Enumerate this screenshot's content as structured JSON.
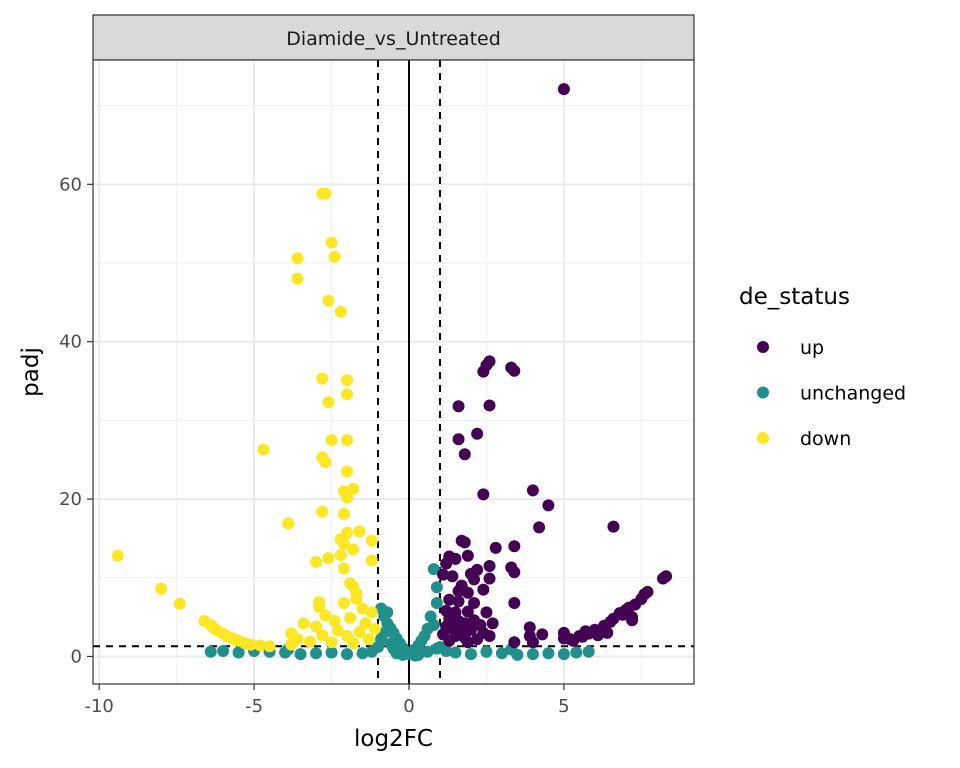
{
  "chart_data": {
    "type": "scatter",
    "title": "",
    "facet": "Diamide_vs_Untreated",
    "xlabel": "log2FC",
    "ylabel": "padj",
    "xlim": [
      -10.2,
      9.2
    ],
    "ylim": [
      -3.5,
      75.8
    ],
    "xticks": [
      -10,
      -5,
      0,
      5
    ],
    "xtick_labels": [
      "-10",
      "-5",
      "0",
      "5"
    ],
    "yticks": [
      0,
      20,
      40,
      60
    ],
    "ytick_labels": [
      "0",
      "20",
      "40",
      "60"
    ],
    "grid": true,
    "reference_lines": {
      "vertical_solid": 0,
      "vertical_dashed": [
        -1,
        1
      ],
      "horizontal_dashed": 1.3
    },
    "legend": {
      "title": "de_status",
      "position": "right"
    },
    "series": [
      {
        "name": "up",
        "color": "#440154",
        "points": [
          [
            5.0,
            72.1
          ],
          [
            2.6,
            37.5
          ],
          [
            2.5,
            37.0
          ],
          [
            3.3,
            36.7
          ],
          [
            3.4,
            36.3
          ],
          [
            2.4,
            36.2
          ],
          [
            1.6,
            31.8
          ],
          [
            2.6,
            31.9
          ],
          [
            2.2,
            28.3
          ],
          [
            1.6,
            27.6
          ],
          [
            1.8,
            25.7
          ],
          [
            4.0,
            21.1
          ],
          [
            2.4,
            20.6
          ],
          [
            4.5,
            19.2
          ],
          [
            6.6,
            16.5
          ],
          [
            4.2,
            16.4
          ],
          [
            1.7,
            14.7
          ],
          [
            1.8,
            14.5
          ],
          [
            2.8,
            13.8
          ],
          [
            3.4,
            14.0
          ],
          [
            1.3,
            12.7
          ],
          [
            1.5,
            12.4
          ],
          [
            1.2,
            11.8
          ],
          [
            1.9,
            12.8
          ],
          [
            2.2,
            11.0
          ],
          [
            2.6,
            11.5
          ],
          [
            3.3,
            11.3
          ],
          [
            3.4,
            10.7
          ],
          [
            1.1,
            10.4
          ],
          [
            1.4,
            10.2
          ],
          [
            2.0,
            10.5
          ],
          [
            2.1,
            9.8
          ],
          [
            2.6,
            9.9
          ],
          [
            1.7,
            9.0
          ],
          [
            1.6,
            8.3
          ],
          [
            1.9,
            8.1
          ],
          [
            2.4,
            8.5
          ],
          [
            1.3,
            7.2
          ],
          [
            1.6,
            7.0
          ],
          [
            2.1,
            6.8
          ],
          [
            3.4,
            6.8
          ],
          [
            1.2,
            5.8
          ],
          [
            1.5,
            5.6
          ],
          [
            1.9,
            5.7
          ],
          [
            2.5,
            5.6
          ],
          [
            1.3,
            4.8
          ],
          [
            1.6,
            4.5
          ],
          [
            1.8,
            4.2
          ],
          [
            2.1,
            4.6
          ],
          [
            2.3,
            4.0
          ],
          [
            2.7,
            4.2
          ],
          [
            1.2,
            3.8
          ],
          [
            1.4,
            3.5
          ],
          [
            1.7,
            3.2
          ],
          [
            2.0,
            3.4
          ],
          [
            2.4,
            3.0
          ],
          [
            1.1,
            2.8
          ],
          [
            1.5,
            2.6
          ],
          [
            1.8,
            2.4
          ],
          [
            2.2,
            2.2
          ],
          [
            2.6,
            2.6
          ],
          [
            1.3,
            2.0
          ],
          [
            1.9,
            1.8
          ],
          [
            3.9,
            3.7
          ],
          [
            4.3,
            2.8
          ],
          [
            3.9,
            2.6
          ],
          [
            3.4,
            1.8
          ],
          [
            4.0,
            1.8
          ],
          [
            5.0,
            3.0
          ],
          [
            5.0,
            2.3
          ],
          [
            5.3,
            2.0
          ],
          [
            5.6,
            2.5
          ],
          [
            5.8,
            2.9
          ],
          [
            6.0,
            3.4
          ],
          [
            6.1,
            2.7
          ],
          [
            6.3,
            3.9
          ],
          [
            6.4,
            3.0
          ],
          [
            6.5,
            4.4
          ],
          [
            6.6,
            4.8
          ],
          [
            6.8,
            5.5
          ],
          [
            7.0,
            5.9
          ],
          [
            7.1,
            6.2
          ],
          [
            7.2,
            5.0
          ],
          [
            7.3,
            6.6
          ],
          [
            7.5,
            7.3
          ],
          [
            7.6,
            7.9
          ],
          [
            7.7,
            8.2
          ],
          [
            8.2,
            9.9
          ],
          [
            8.3,
            10.2
          ],
          [
            6.9,
            5.3
          ],
          [
            7.2,
            4.6
          ],
          [
            5.7,
            3.2
          ],
          [
            5.5,
            2.6
          ],
          [
            5.2,
            2.2
          ]
        ]
      },
      {
        "name": "unchanged",
        "color": "#21908c",
        "points": [
          [
            0.8,
            11.1
          ],
          [
            0.9,
            8.8
          ],
          [
            0.9,
            6.8
          ],
          [
            0.7,
            5.1
          ],
          [
            0.8,
            4.0
          ],
          [
            0.6,
            3.5
          ],
          [
            0.5,
            2.6
          ],
          [
            0.4,
            2.0
          ],
          [
            0.3,
            1.4
          ],
          [
            0.2,
            0.9
          ],
          [
            0.1,
            0.5
          ],
          [
            0.0,
            0.3
          ],
          [
            -0.1,
            0.6
          ],
          [
            -0.2,
            1.1
          ],
          [
            -0.3,
            1.7
          ],
          [
            -0.4,
            2.3
          ],
          [
            -0.5,
            3.0
          ],
          [
            -0.6,
            3.6
          ],
          [
            -0.7,
            4.2
          ],
          [
            -0.8,
            5.1
          ],
          [
            -0.9,
            6.1
          ],
          [
            -0.7,
            5.6
          ],
          [
            -0.8,
            3.0
          ],
          [
            -0.9,
            2.2
          ],
          [
            -0.6,
            1.6
          ],
          [
            -0.5,
            1.0
          ],
          [
            -0.4,
            0.4
          ],
          [
            0.3,
            0.2
          ],
          [
            0.6,
            0.6
          ],
          [
            0.9,
            1.0
          ],
          [
            1.2,
            0.7
          ],
          [
            1.5,
            0.5
          ],
          [
            2.0,
            0.3
          ],
          [
            2.5,
            0.6
          ],
          [
            3.0,
            0.4
          ],
          [
            3.5,
            0.2
          ],
          [
            4.0,
            0.3
          ],
          [
            4.5,
            0.4
          ],
          [
            5.0,
            0.3
          ],
          [
            5.4,
            0.5
          ],
          [
            5.8,
            0.6
          ],
          [
            3.3,
            0.9
          ],
          [
            -1.2,
            0.6
          ],
          [
            -1.5,
            0.4
          ],
          [
            -2.0,
            0.3
          ],
          [
            -2.5,
            0.5
          ],
          [
            -3.0,
            0.4
          ],
          [
            -3.5,
            0.3
          ],
          [
            -4.0,
            0.5
          ],
          [
            -4.5,
            0.6
          ],
          [
            -5.0,
            0.7
          ],
          [
            -5.5,
            0.5
          ],
          [
            -6.0,
            0.7
          ],
          [
            -6.4,
            0.6
          ],
          [
            -3.9,
            0.9
          ],
          [
            -1.0,
            1.2
          ],
          [
            1.0,
            1.2
          ],
          [
            0.2,
            0.1
          ],
          [
            -0.2,
            0.2
          ]
        ]
      },
      {
        "name": "down",
        "color": "#fde725",
        "points": [
          [
            -2.8,
            58.8
          ],
          [
            -2.7,
            58.8
          ],
          [
            -2.5,
            52.6
          ],
          [
            -2.4,
            50.8
          ],
          [
            -3.6,
            50.6
          ],
          [
            -3.6,
            48.0
          ],
          [
            -2.6,
            45.2
          ],
          [
            -2.2,
            43.8
          ],
          [
            -2.0,
            35.1
          ],
          [
            -2.8,
            35.3
          ],
          [
            -2.0,
            33.3
          ],
          [
            -2.6,
            32.3
          ],
          [
            -2.0,
            27.5
          ],
          [
            -2.5,
            27.5
          ],
          [
            -4.7,
            26.3
          ],
          [
            -2.8,
            25.3
          ],
          [
            -2.7,
            24.7
          ],
          [
            -2.0,
            23.5
          ],
          [
            -1.8,
            21.3
          ],
          [
            -2.1,
            21.0
          ],
          [
            -2.0,
            20.2
          ],
          [
            -3.9,
            16.9
          ],
          [
            -2.8,
            18.4
          ],
          [
            -2.1,
            18.1
          ],
          [
            -1.6,
            15.9
          ],
          [
            -2.0,
            15.7
          ],
          [
            -2.2,
            14.9
          ],
          [
            -2.1,
            14.3
          ],
          [
            -1.2,
            14.7
          ],
          [
            -1.8,
            13.6
          ],
          [
            -2.2,
            12.9
          ],
          [
            -1.2,
            12.2
          ],
          [
            -3.0,
            12.0
          ],
          [
            -2.6,
            12.5
          ],
          [
            -2.1,
            11.2
          ],
          [
            -1.9,
            9.3
          ],
          [
            -1.8,
            8.9
          ],
          [
            -1.7,
            8.0
          ],
          [
            -1.7,
            7.3
          ],
          [
            -2.1,
            6.8
          ],
          [
            -2.9,
            6.9
          ],
          [
            -2.9,
            6.3
          ],
          [
            -1.5,
            6.1
          ],
          [
            -1.2,
            5.6
          ],
          [
            -2.7,
            5.2
          ],
          [
            -2.4,
            4.5
          ],
          [
            -1.9,
            4.9
          ],
          [
            -1.4,
            4.2
          ],
          [
            -3.4,
            4.2
          ],
          [
            -3.0,
            3.8
          ],
          [
            -2.3,
            3.3
          ],
          [
            -1.6,
            3.1
          ],
          [
            -1.1,
            3.5
          ],
          [
            -3.8,
            2.9
          ],
          [
            -2.8,
            2.7
          ],
          [
            -2.0,
            2.6
          ],
          [
            -1.3,
            2.2
          ],
          [
            -3.6,
            2.2
          ],
          [
            -3.2,
            1.9
          ],
          [
            -2.5,
            1.8
          ],
          [
            -1.8,
            1.7
          ],
          [
            -3.8,
            1.5
          ],
          [
            -9.4,
            12.8
          ],
          [
            -8.0,
            8.6
          ],
          [
            -7.4,
            6.7
          ],
          [
            -6.6,
            4.5
          ],
          [
            -6.4,
            4.0
          ],
          [
            -6.3,
            3.6
          ],
          [
            -6.0,
            2.9
          ],
          [
            -5.9,
            2.6
          ],
          [
            -5.7,
            2.3
          ],
          [
            -5.5,
            2.0
          ],
          [
            -5.3,
            1.7
          ],
          [
            -5.1,
            1.5
          ],
          [
            -4.8,
            1.4
          ],
          [
            -4.5,
            1.3
          ],
          [
            -6.2,
            3.3
          ],
          [
            -5.6,
            2.1
          ]
        ]
      }
    ]
  }
}
